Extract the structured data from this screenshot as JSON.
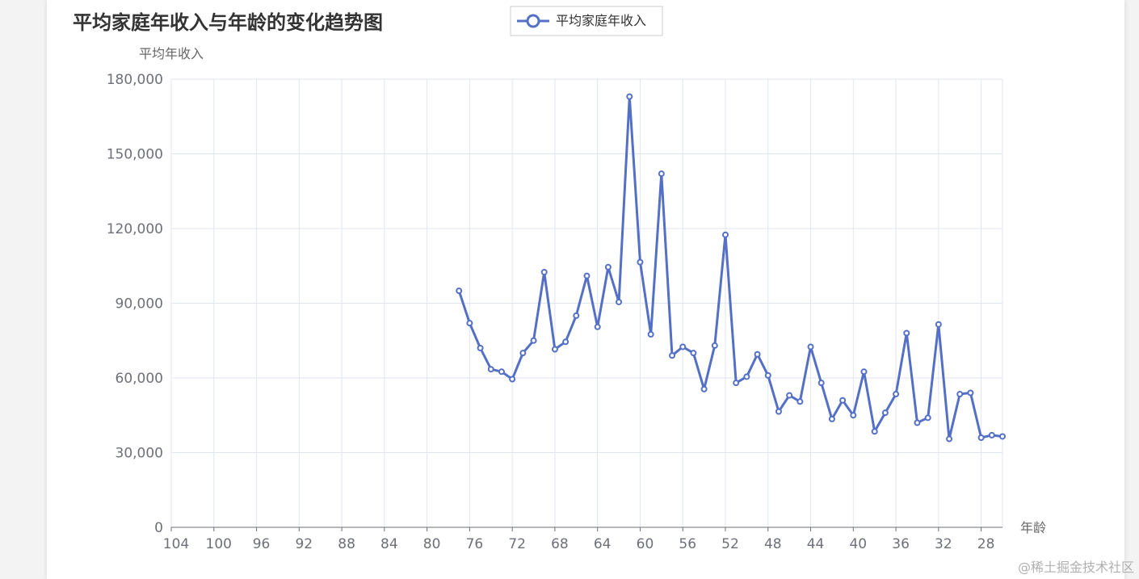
{
  "chart_data": {
    "type": "line",
    "title": "平均家庭年收入与年龄的变化趋势图",
    "ylabel": "平均年收入",
    "xlabel": "年龄",
    "legend": [
      "平均家庭年收入"
    ],
    "legend_position": "top-center",
    "x_axis_inverse": true,
    "xlim": [
      104,
      26
    ],
    "ylim": [
      0,
      180000
    ],
    "y_ticks": [
      0,
      30000,
      60000,
      90000,
      120000,
      150000,
      180000
    ],
    "y_tick_labels": [
      "0",
      "30,000",
      "60,000",
      "90,000",
      "120,000",
      "150,000",
      "180,000"
    ],
    "x_ticks": [
      104,
      100,
      96,
      92,
      88,
      84,
      80,
      76,
      72,
      68,
      64,
      60,
      56,
      52,
      48,
      44,
      40,
      36,
      32,
      28
    ],
    "x_tick_labels": [
      "104",
      "100",
      "96",
      "92",
      "88",
      "84",
      "80",
      "76",
      "72",
      "68",
      "64",
      "60",
      "56",
      "52",
      "48",
      "44",
      "40",
      "36",
      "32",
      "28"
    ],
    "grid": true,
    "series": [
      {
        "name": "平均家庭年收入",
        "color": "#5470c6",
        "x": [
          77,
          76,
          75,
          74,
          73,
          72,
          71,
          70,
          69,
          68,
          67,
          66,
          65,
          64,
          63,
          62,
          61,
          60,
          59,
          58,
          57,
          56,
          55,
          54,
          53,
          52,
          51,
          50,
          49,
          48,
          47,
          46,
          45,
          44,
          43,
          42,
          41,
          40,
          39,
          38,
          37,
          36,
          35,
          34,
          33,
          32,
          31,
          30,
          29,
          28,
          27,
          26
        ],
        "values": [
          95000,
          82000,
          72000,
          63500,
          62500,
          59500,
          70000,
          75000,
          102500,
          71500,
          74500,
          85000,
          101000,
          80500,
          104500,
          90500,
          173000,
          106500,
          77500,
          142000,
          69000,
          72500,
          70000,
          55500,
          73000,
          117500,
          58000,
          60500,
          69500,
          61000,
          46500,
          53000,
          50500,
          72500,
          58000,
          43500,
          51000,
          45000,
          62500,
          38500,
          46000,
          53500,
          78000,
          42000,
          44000,
          81500,
          35500,
          53500,
          54000,
          36000,
          37000,
          36500
        ]
      }
    ]
  },
  "watermark": "@稀土掘金技术社区"
}
